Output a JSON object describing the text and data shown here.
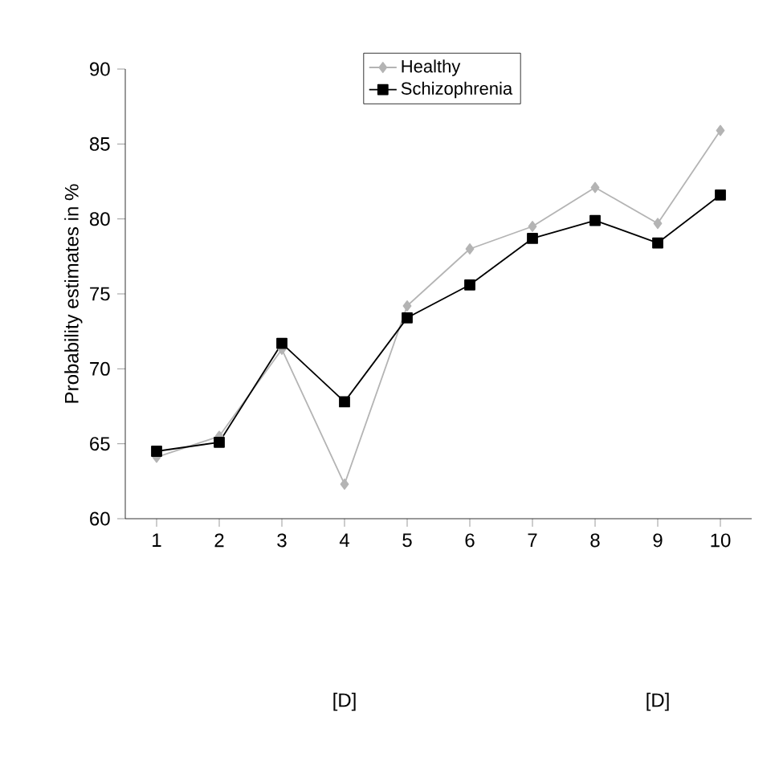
{
  "chart_data": {
    "type": "line",
    "ylabel": "Probability estimates in %",
    "categories": [
      "1",
      "2",
      "3",
      "4",
      "5",
      "6",
      "7",
      "8",
      "9",
      "10"
    ],
    "series": [
      {
        "name": "Healthy",
        "color": "#b4b4b4",
        "marker": "diamond",
        "values": [
          64.1,
          65.5,
          71.3,
          62.3,
          74.2,
          78.0,
          79.5,
          82.1,
          79.7,
          85.9
        ]
      },
      {
        "name": "Schizophrenia",
        "color": "#000000",
        "marker": "square",
        "values": [
          64.5,
          65.1,
          71.7,
          67.8,
          73.4,
          75.6,
          78.7,
          79.9,
          78.4,
          81.6
        ]
      }
    ],
    "ylim": [
      60,
      90
    ],
    "yticks": [
      60,
      65,
      70,
      75,
      80,
      85,
      90
    ],
    "legend": "top right",
    "grid": false,
    "annotations": [
      "[D]",
      "[D]"
    ]
  }
}
